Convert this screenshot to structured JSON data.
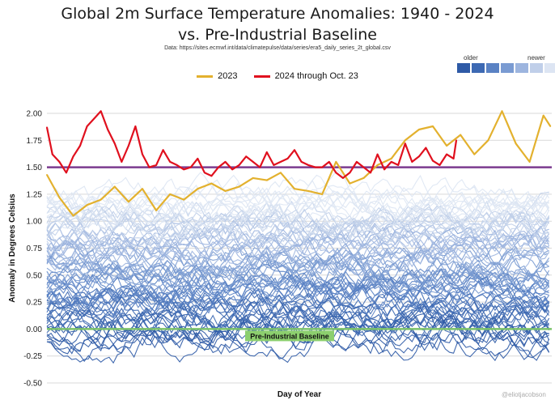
{
  "chart_data": {
    "type": "line",
    "title_line1": "Global 2m Surface Temperature Anomalies: 1940 - 2024",
    "title_line2": "vs. Pre-Industrial Baseline",
    "source": "Data: https://sites.ecmwf.int/data/climatepulse/data/series/era5_daily_series_2t_global.csv",
    "xlabel": "Day of Year",
    "ylabel": "Anomaly in Degrees Celsius",
    "ylim": [
      -0.5,
      2.0
    ],
    "xlim": [
      1,
      366
    ],
    "yticks": [
      "2.00",
      "1.75",
      "1.50",
      "1.25",
      "1.00",
      "0.75",
      "0.50",
      "0.25",
      "0.00",
      "-0.25",
      "-0.50"
    ],
    "grid": true,
    "legend": {
      "placement": "top-center",
      "entries": [
        {
          "name": "2023",
          "color": "#e3b12e"
        },
        {
          "name": "2024 through Oct. 23",
          "color": "#e0101e"
        }
      ]
    },
    "color_ramp": {
      "older_label": "older",
      "newer_label": "newer",
      "colors": [
        "#2e5aa6",
        "#3d69b3",
        "#5a82c4",
        "#7a9bd2",
        "#9db5df",
        "#c0cfe9",
        "#dde5f3"
      ]
    },
    "reference_lines": [
      {
        "label": "Pre-Industrial Baseline",
        "value": 0.0,
        "color": "#7cc36a"
      },
      {
        "label": "",
        "value": 1.5,
        "color": "#7b3b8f"
      }
    ],
    "series": [
      {
        "name": "2023",
        "color": "#e3b12e",
        "x": [
          1,
          10,
          20,
          30,
          40,
          50,
          60,
          70,
          80,
          90,
          100,
          110,
          120,
          130,
          140,
          150,
          160,
          170,
          180,
          190,
          200,
          210,
          220,
          230,
          240,
          250,
          260,
          270,
          280,
          290,
          300,
          310,
          320,
          330,
          340,
          350,
          360,
          365
        ],
        "y": [
          1.43,
          1.22,
          1.05,
          1.15,
          1.2,
          1.32,
          1.18,
          1.3,
          1.1,
          1.25,
          1.2,
          1.3,
          1.35,
          1.28,
          1.32,
          1.4,
          1.38,
          1.45,
          1.3,
          1.28,
          1.25,
          1.55,
          1.35,
          1.4,
          1.52,
          1.58,
          1.75,
          1.85,
          1.88,
          1.7,
          1.8,
          1.62,
          1.75,
          2.02,
          1.72,
          1.55,
          1.98,
          1.88
        ]
      },
      {
        "name": "2024 through Oct. 23",
        "color": "#e0101e",
        "x": [
          1,
          5,
          10,
          15,
          20,
          25,
          30,
          35,
          40,
          45,
          50,
          55,
          60,
          65,
          70,
          75,
          80,
          85,
          90,
          95,
          100,
          105,
          110,
          115,
          120,
          125,
          130,
          135,
          140,
          145,
          150,
          155,
          160,
          165,
          170,
          175,
          180,
          185,
          190,
          195,
          200,
          205,
          210,
          215,
          220,
          225,
          230,
          235,
          240,
          245,
          250,
          255,
          260,
          265,
          270,
          275,
          280,
          285,
          290,
          295,
          297
        ],
        "y": [
          1.87,
          1.62,
          1.55,
          1.45,
          1.6,
          1.7,
          1.88,
          1.95,
          2.02,
          1.85,
          1.72,
          1.55,
          1.7,
          1.88,
          1.62,
          1.5,
          1.52,
          1.66,
          1.55,
          1.52,
          1.48,
          1.5,
          1.58,
          1.45,
          1.42,
          1.5,
          1.55,
          1.48,
          1.52,
          1.6,
          1.55,
          1.5,
          1.64,
          1.52,
          1.55,
          1.58,
          1.66,
          1.55,
          1.52,
          1.5,
          1.5,
          1.55,
          1.45,
          1.4,
          1.45,
          1.55,
          1.5,
          1.45,
          1.62,
          1.48,
          1.55,
          1.52,
          1.72,
          1.55,
          1.6,
          1.68,
          1.56,
          1.52,
          1.62,
          1.58,
          1.75
        ]
      }
    ]
  },
  "watermark": "@eliotjacobson"
}
